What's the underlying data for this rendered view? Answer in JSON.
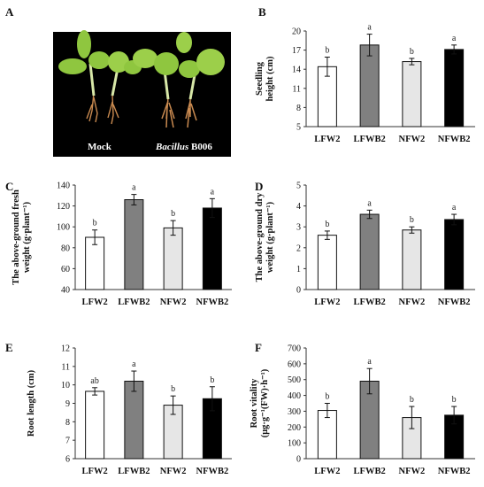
{
  "panels": {
    "A": {
      "letter": "A",
      "caption_mock": "Mock",
      "caption_treat_italic": "Bacillus",
      "caption_treat_code": " B006"
    }
  },
  "colors": {
    "LFW2": "#ffffff",
    "LFWB2": "#808080",
    "NFW2": "#e6e6e6",
    "NFWB2": "#000000",
    "photo_background": "#000000",
    "leaf": "#8fc63f",
    "stem": "#d8e8a8",
    "root": "#c98a50"
  },
  "chart_data": [
    {
      "panel": "B",
      "type": "bar",
      "categories": [
        "LFW2",
        "LFWB2",
        "NFW2",
        "NFWB2"
      ],
      "values": [
        14.4,
        17.8,
        15.2,
        17.1
      ],
      "errors": [
        1.5,
        1.7,
        0.5,
        0.7
      ],
      "significance": [
        "b",
        "a",
        "b",
        "a"
      ],
      "ylabel_lines": [
        "Seedling",
        "height (cm)"
      ],
      "ylim": [
        5,
        20
      ],
      "yticks": [
        5,
        8,
        11,
        14,
        17,
        20
      ]
    },
    {
      "panel": "C",
      "type": "bar",
      "categories": [
        "LFW2",
        "LFWB2",
        "NFW2",
        "NFWB2"
      ],
      "values": [
        90,
        126,
        99,
        118
      ],
      "errors": [
        7,
        5,
        7,
        9
      ],
      "significance": [
        "b",
        "a",
        "b",
        "a"
      ],
      "ylabel_lines": [
        "The above-ground fresh",
        "weight (g·plant⁻¹)"
      ],
      "ylim": [
        40,
        140
      ],
      "yticks": [
        40,
        60,
        80,
        100,
        120,
        140
      ]
    },
    {
      "panel": "D",
      "type": "bar",
      "categories": [
        "LFW2",
        "LFWB2",
        "NFW2",
        "NFWB2"
      ],
      "values": [
        2.6,
        3.6,
        2.85,
        3.35
      ],
      "errors": [
        0.2,
        0.2,
        0.15,
        0.25
      ],
      "significance": [
        "b",
        "a",
        "b",
        "a"
      ],
      "ylabel_lines": [
        "The above-ground dry",
        "weight (g·plant⁻¹)"
      ],
      "ylim": [
        0,
        5
      ],
      "yticks": [
        0,
        1,
        2,
        3,
        4,
        5
      ]
    },
    {
      "panel": "E",
      "type": "bar",
      "categories": [
        "LFW2",
        "LFWB2",
        "NFW2",
        "NFWB2"
      ],
      "values": [
        9.65,
        10.2,
        8.9,
        9.25
      ],
      "errors": [
        0.2,
        0.55,
        0.5,
        0.65
      ],
      "significance": [
        "ab",
        "a",
        "b",
        "b"
      ],
      "ylabel_lines": [
        "Root length (cm)"
      ],
      "ylim": [
        6,
        12
      ],
      "yticks": [
        6,
        7,
        8,
        9,
        10,
        11,
        12
      ]
    },
    {
      "panel": "F",
      "type": "bar",
      "categories": [
        "LFW2",
        "LFWB2",
        "NFW2",
        "NFWB2"
      ],
      "values": [
        305,
        490,
        260,
        275
      ],
      "errors": [
        45,
        80,
        70,
        55
      ],
      "significance": [
        "b",
        "a",
        "b",
        "b"
      ],
      "ylabel_lines": [
        "Root vitality",
        "(μg·g⁻¹(FW)·h⁻¹)"
      ],
      "ylim": [
        0,
        700
      ],
      "yticks": [
        0,
        100,
        200,
        300,
        400,
        500,
        600,
        700
      ]
    }
  ]
}
